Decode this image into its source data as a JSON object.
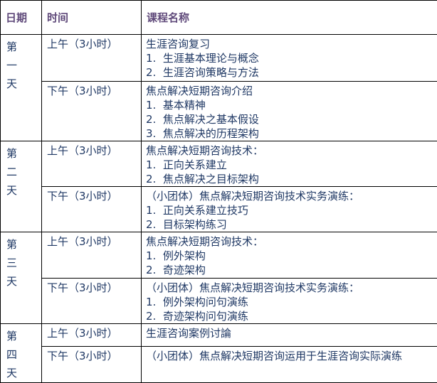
{
  "colors": {
    "header_text": "#5F497A",
    "body_text": "#1F3864",
    "border": "#000000",
    "background": "#FFFFFF"
  },
  "table": {
    "columns": [
      "日期",
      "时间",
      "课程名称"
    ],
    "days": [
      {
        "date": "第一天",
        "sessions": [
          {
            "time": "上午（3小时）",
            "lines": [
              "生涯咨询复习",
              "1.  生涯基本理论与概念",
              "2.  生涯咨询策略与方法"
            ]
          },
          {
            "time": "下午（3小时）",
            "lines": [
              "焦点解决短期咨询介绍",
              "1.  基本精神",
              "2.  焦点解决之基本假设",
              "3.  焦点解决的历程架构"
            ]
          }
        ]
      },
      {
        "date": "第二天",
        "sessions": [
          {
            "time": "上午（3小时）",
            "lines": [
              "焦点解决短期咨询技术：",
              "1.  正向关系建立",
              "2.  焦点解决之目标架构"
            ]
          },
          {
            "time": "下午（3小时）",
            "lines": [
              "（小团体）焦点解决短期咨询技术实务演练：",
              "1.  正向关系建立技巧",
              "2.  目标架构练习"
            ]
          }
        ]
      },
      {
        "date": "第三天",
        "sessions": [
          {
            "time": "上午（3小时）",
            "lines": [
              "焦点解决短期咨询技术：",
              "1.  例外架构",
              "2.  奇迹架构"
            ]
          },
          {
            "time": "下午（3小时）",
            "lines": [
              "（小团体）焦点解决短期咨询技术实务演练：",
              "1.  例外架构问句演练",
              "2.  奇迹架构问句演练"
            ]
          }
        ]
      },
      {
        "date": "第四天",
        "sessions": [
          {
            "time": "上午（3小时）",
            "lines": [
              "生涯咨询案例讨論"
            ]
          },
          {
            "time": "下午（3小时）",
            "lines": [
              "（小团体）焦点解决短期咨询运用于生涯咨询实际演练"
            ]
          }
        ]
      }
    ]
  }
}
